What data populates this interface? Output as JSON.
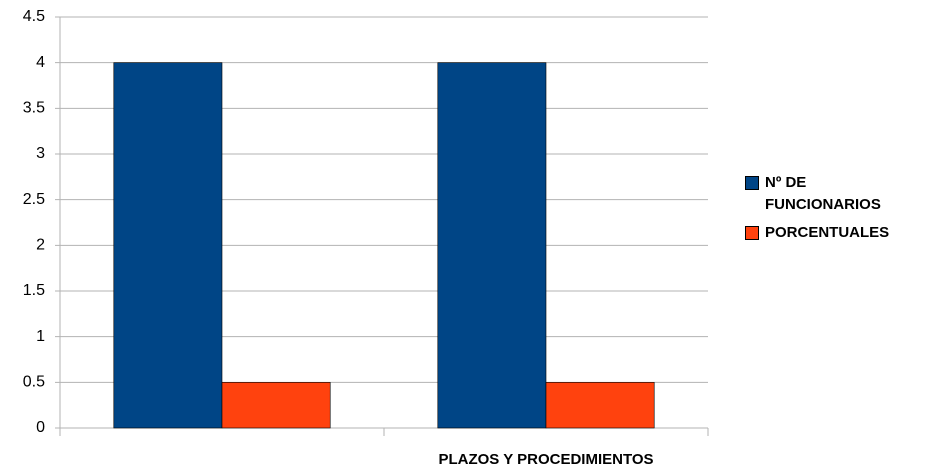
{
  "chart_data": {
    "type": "bar",
    "categories": [
      null,
      "PLAZOS Y PROCEDIMIENTOS"
    ],
    "series": [
      {
        "name": "Nº DE FUNCIONARIOS",
        "color": "#004586",
        "values": [
          4,
          4
        ]
      },
      {
        "name": "PORCENTUALES",
        "color": "#ff420e",
        "values": [
          0.5,
          0.5
        ]
      }
    ],
    "ylim": [
      0,
      4.5
    ],
    "yticks": [
      0,
      0.5,
      1,
      1.5,
      2,
      2.5,
      3,
      3.5,
      4,
      4.5
    ],
    "grid": true,
    "legend": "right"
  }
}
